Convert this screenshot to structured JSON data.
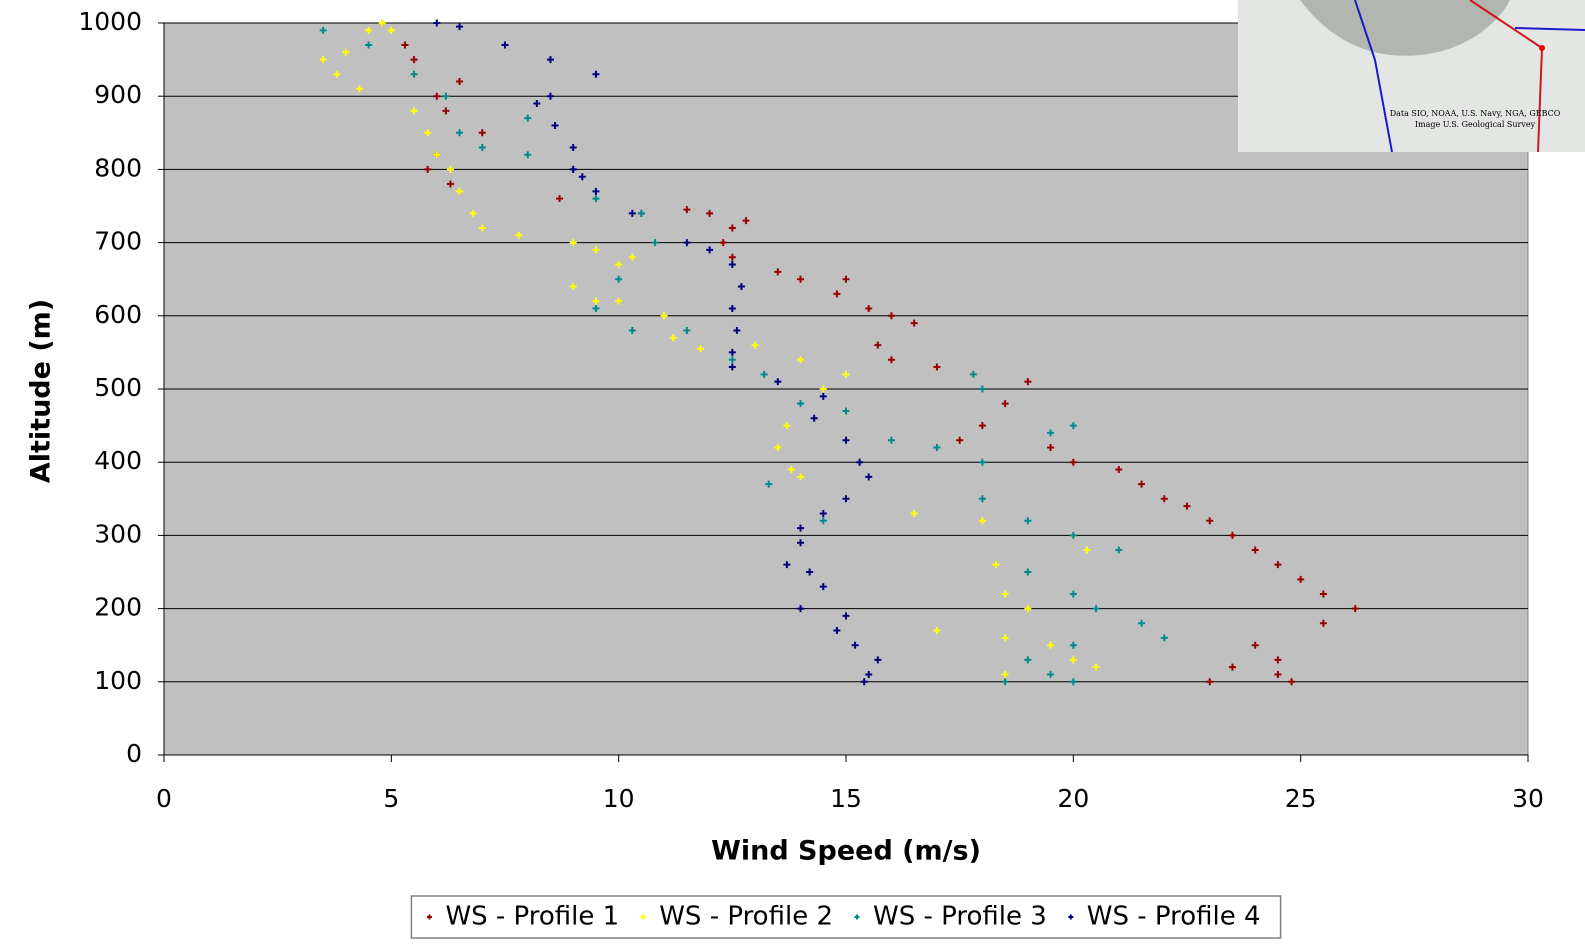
{
  "chart_data": {
    "type": "scatter",
    "x_label": "Wind Speed (m/s)",
    "y_label": "Altitude (m)",
    "xlim": [
      0,
      30
    ],
    "xticks": [
      0,
      5,
      10,
      15,
      20,
      25,
      30
    ],
    "ylim": [
      0,
      1000
    ],
    "yticks": [
      0,
      100,
      200,
      300,
      400,
      500,
      600,
      700,
      800,
      900,
      1000
    ],
    "grid": true,
    "legend_position": "bottom",
    "series": [
      {
        "name": "WS - Profile 1",
        "color": "#990000",
        "x": [
          4.8,
          5.3,
          5.5,
          6.0,
          6.5,
          6.2,
          7.0,
          6.0,
          5.8,
          6.3,
          8.7,
          10.5,
          11.5,
          12.0,
          12.5,
          12.8,
          12.3,
          12.5,
          13.5,
          14.0,
          15.0,
          14.8,
          15.5,
          16.0,
          16.5,
          15.7,
          16.0,
          17.0,
          19.0,
          18.5,
          18.0,
          17.5,
          19.5,
          20.0,
          21.0,
          21.5,
          22.0,
          22.5,
          23.0,
          23.5,
          24.0,
          24.5,
          25.0,
          25.5,
          26.2,
          25.5,
          24.0,
          24.5,
          23.5,
          23.0,
          24.5,
          24.8
        ],
        "values": [
          1000,
          970,
          950,
          900,
          920,
          880,
          850,
          820,
          800,
          780,
          760,
          740,
          745,
          740,
          720,
          730,
          700,
          680,
          660,
          650,
          650,
          630,
          610,
          600,
          590,
          560,
          540,
          530,
          510,
          480,
          450,
          430,
          420,
          400,
          390,
          370,
          350,
          340,
          320,
          300,
          280,
          260,
          240,
          220,
          200,
          180,
          150,
          130,
          120,
          100,
          110,
          100
        ]
      },
      {
        "name": "WS - Profile 2",
        "color": "#ffff00",
        "x": [
          3.5,
          3.8,
          4.0,
          4.3,
          4.5,
          4.8,
          5.0,
          5.5,
          5.8,
          6.0,
          6.3,
          6.5,
          6.8,
          7.0,
          7.8,
          9.0,
          9.5,
          10.0,
          10.3,
          9.0,
          9.5,
          10.0,
          11.0,
          11.2,
          11.8,
          13.0,
          14.0,
          15.0,
          14.5,
          13.7,
          13.5,
          13.8,
          14.0,
          15.0,
          16.5,
          18.0,
          20.0,
          18.3,
          18.5,
          19.0,
          17.0,
          18.5,
          19.5,
          20.0,
          20.5,
          18.5,
          19.5,
          20.3
        ],
        "values": [
          950,
          930,
          960,
          910,
          990,
          1000,
          990,
          880,
          850,
          820,
          800,
          770,
          740,
          720,
          710,
          700,
          690,
          670,
          680,
          640,
          620,
          620,
          600,
          570,
          555,
          560,
          540,
          520,
          500,
          450,
          420,
          390,
          380,
          350,
          330,
          320,
          300,
          260,
          220,
          200,
          170,
          160,
          150,
          130,
          120,
          110,
          110,
          280
        ]
      },
      {
        "name": "WS - Profile 3",
        "color": "#008b8b",
        "x": [
          3.5,
          4.5,
          5.5,
          6.2,
          6.5,
          7.0,
          8.0,
          8.0,
          9.0,
          9.5,
          10.5,
          10.8,
          10.0,
          9.5,
          10.3,
          11.5,
          12.5,
          13.2,
          14.0,
          15.0,
          16.0,
          17.0,
          18.0,
          19.5,
          20.0,
          17.8,
          18.0,
          13.3,
          14.5,
          18.0,
          19.0,
          20.0,
          21.0,
          19.0,
          20.0,
          20.5,
          21.5,
          22.0,
          20.0,
          19.0,
          18.5,
          19.5,
          20.0
        ],
        "values": [
          990,
          970,
          930,
          900,
          850,
          830,
          820,
          870,
          800,
          760,
          740,
          700,
          650,
          610,
          580,
          580,
          540,
          520,
          480,
          470,
          430,
          420,
          400,
          440,
          450,
          520,
          500,
          370,
          320,
          350,
          320,
          300,
          280,
          250,
          220,
          200,
          180,
          160,
          150,
          130,
          100,
          110,
          100
        ]
      },
      {
        "name": "WS - Profile 4",
        "color": "#000080",
        "x": [
          6.0,
          6.5,
          7.5,
          8.5,
          9.5,
          8.5,
          8.2,
          8.6,
          9.0,
          9.0,
          9.2,
          9.5,
          10.3,
          11.5,
          12.0,
          12.5,
          12.7,
          12.5,
          12.6,
          12.5,
          12.5,
          13.5,
          14.5,
          14.3,
          15.0,
          15.3,
          15.5,
          15.0,
          14.5,
          14.0,
          14.0,
          13.7,
          14.2,
          14.5,
          14.0,
          15.0,
          14.8,
          15.2,
          15.7,
          15.5,
          15.4
        ],
        "values": [
          1000,
          995,
          970,
          950,
          930,
          900,
          890,
          860,
          830,
          800,
          790,
          770,
          740,
          700,
          690,
          670,
          640,
          610,
          580,
          550,
          530,
          510,
          490,
          460,
          430,
          400,
          380,
          350,
          330,
          310,
          290,
          260,
          250,
          230,
          200,
          190,
          170,
          150,
          130,
          110,
          100
        ]
      }
    ]
  },
  "inset": {
    "attribution": [
      "Data SIO, NOAA, U.S. Navy, NGA, GEBCO",
      "Image U.S. Geological Survey"
    ]
  }
}
